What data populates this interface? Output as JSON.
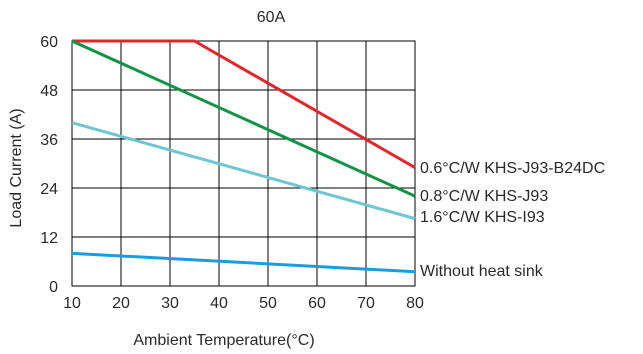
{
  "chart_data": {
    "type": "line",
    "title": "60A",
    "xlabel": "Ambient Temperature(°C)",
    "ylabel": "Load Current (A)",
    "xlim": [
      10,
      80
    ],
    "ylim": [
      0,
      60
    ],
    "xticks": [
      10,
      20,
      30,
      40,
      50,
      60,
      70,
      80
    ],
    "yticks": [
      0,
      12,
      24,
      36,
      48,
      60
    ],
    "grid": true,
    "series": [
      {
        "name": "0.6°C/W  KHS-J93-B24DC",
        "color": "#e2262b",
        "x": [
          10,
          35,
          80
        ],
        "y": [
          60,
          60,
          29
        ]
      },
      {
        "name": "0.8°C/W  KHS-J93",
        "color": "#119445",
        "x": [
          10,
          80
        ],
        "y": [
          60,
          22
        ]
      },
      {
        "name": "1.6°C/W  KHS-I93",
        "color": "#6ec6d2",
        "x": [
          10,
          80
        ],
        "y": [
          40,
          16.5
        ]
      },
      {
        "name": "Without heat sink",
        "color": "#1a9de0",
        "x": [
          10,
          80
        ],
        "y": [
          8,
          3.5
        ]
      }
    ]
  }
}
